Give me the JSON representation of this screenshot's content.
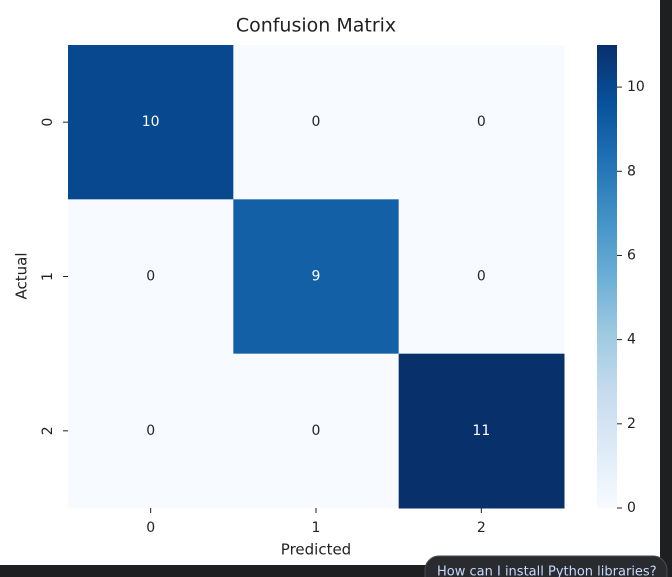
{
  "chart_data": {
    "type": "heatmap",
    "title": "Confusion Matrix",
    "xlabel": "Predicted",
    "ylabel": "Actual",
    "x_categories": [
      "0",
      "1",
      "2"
    ],
    "y_categories": [
      "0",
      "1",
      "2"
    ],
    "z": [
      [
        10,
        0,
        0
      ],
      [
        0,
        9,
        0
      ],
      [
        0,
        0,
        11
      ]
    ],
    "cmap": "Blues",
    "colorbar_lim": [
      0,
      11
    ],
    "colorbar_ticks": [
      0,
      2,
      4,
      6,
      8,
      10
    ]
  },
  "suggestion_chip": "How can I install Python libraries?"
}
